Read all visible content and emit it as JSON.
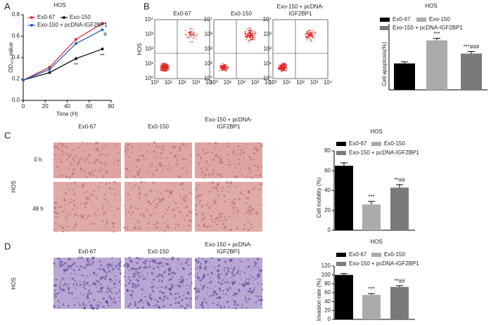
{
  "panel_labels": [
    "A",
    "B",
    "C",
    "D"
  ],
  "flow": {
    "row_label": "HOS",
    "columns": [
      [
        "Ex0-67"
      ],
      [
        "Ex0-150"
      ],
      [
        "Exo-150 + pcDNA-",
        "IGF2BP1"
      ]
    ],
    "axis_ticks": [
      "10⁰",
      "10¹",
      "10²",
      "10³",
      "10⁴"
    ]
  },
  "migration": {
    "row_label": "HOS",
    "columns": [
      [
        "Ex0-67"
      ],
      [
        "Ex0-150"
      ],
      [
        "Exo-150 + pcDNA-",
        "IGF2BP1"
      ]
    ],
    "rows": [
      "0 h",
      "48 h"
    ]
  },
  "invasion": {
    "row_label": "HOS",
    "columns": [
      [
        "Ex0-67"
      ],
      [
        "Ex0-150"
      ],
      [
        "Exo-150 + pcDNA-",
        "IGF2BP1"
      ]
    ]
  },
  "chart_data": [
    {
      "type": "line",
      "title": "HOS",
      "x_label": "Time (H)",
      "y_label": "OD₄₅₀ value",
      "x": [
        0,
        24,
        48,
        72
      ],
      "xlim": [
        0,
        80
      ],
      "xticks": [
        0,
        20,
        40,
        60,
        80
      ],
      "ylim": [
        0,
        0.8
      ],
      "yticks": [
        {
          "value": 0,
          "label": "0.0"
        },
        0.2,
        0.4,
        0.6,
        0.8
      ],
      "series": [
        {
          "name": "Ex0-67",
          "color": "#e03030",
          "values": [
            0.19,
            0.31,
            0.57,
            0.72
          ]
        },
        {
          "name": "Exo-150",
          "color": "#111111",
          "values": [
            0.19,
            0.26,
            0.39,
            0.48
          ]
        },
        {
          "name": "Exo-150 + pcDNA-IGF2BP1",
          "color": "#2f5fc8",
          "values": [
            0.19,
            0.29,
            0.53,
            0.66
          ]
        }
      ],
      "annotations": [
        "**",
        "**",
        "*",
        "#"
      ]
    },
    {
      "type": "bar",
      "title": "HOS",
      "y_label": "Cell apoptosis(%)",
      "categories": [
        "Ex0-67",
        "Exo-150",
        "Exo-150 + pcDNA-IGF2BP1"
      ],
      "colors": [
        "#000000",
        "#ababab",
        "#7a7a7a"
      ],
      "values": [
        8,
        15,
        11
      ],
      "errors": [
        0.5,
        0.6,
        0.6
      ],
      "ylim": [
        0,
        20
      ],
      "annotations": [
        null,
        "***",
        "***###"
      ]
    },
    {
      "type": "bar",
      "title": "HOS",
      "y_label": "Cell mobility (%)",
      "categories": [
        "Ex0-67",
        "Ex0-150",
        "Exo-150 + pcDNA-IGF2BP1"
      ],
      "colors": [
        "#000000",
        "#ababab",
        "#7a7a7a"
      ],
      "values": [
        65,
        26,
        43
      ],
      "errors": [
        3,
        3,
        3
      ],
      "ylim": [
        0,
        80
      ],
      "yticks": [
        0,
        20,
        40,
        60,
        80
      ],
      "annotations": [
        null,
        "***",
        "**##"
      ]
    },
    {
      "type": "bar",
      "title": "HOS",
      "y_label": "Invasion rate (%)",
      "categories": [
        "Ex0-67",
        "Ex0-150",
        "Exo-150 + pcDNA-IGF2BP1"
      ],
      "colors": [
        "#000000",
        "#ababab",
        "#7a7a7a"
      ],
      "values": [
        100,
        55,
        73
      ],
      "errors": [
        3,
        3,
        3
      ],
      "ylim": [
        0,
        120
      ],
      "yticks": [
        0,
        20,
        40,
        60,
        80,
        100,
        120
      ],
      "annotations": [
        null,
        "***",
        "**##"
      ]
    }
  ]
}
